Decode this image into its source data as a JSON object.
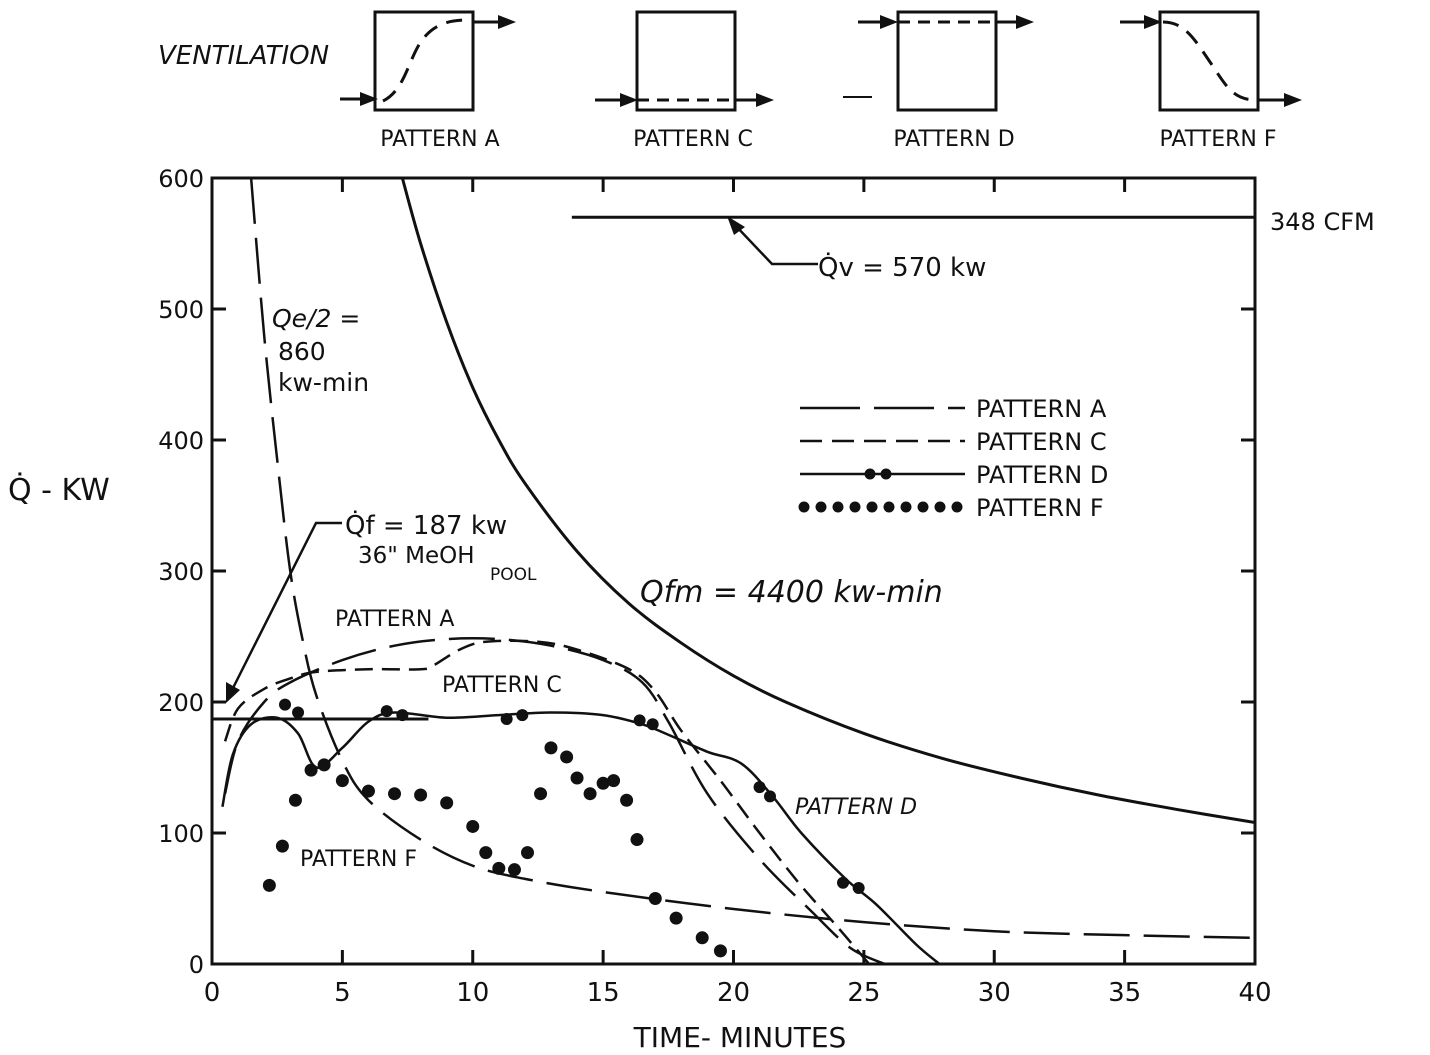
{
  "header": {
    "ventilation_label": "VENTILATION",
    "patterns": [
      {
        "label": "PATTERN A",
        "kind": "rise"
      },
      {
        "label": "PATTERN C",
        "kind": "low"
      },
      {
        "label": "PATTERN D",
        "kind": "high"
      },
      {
        "label": "PATTERN F",
        "kind": "fall"
      }
    ]
  },
  "chart_data": {
    "type": "line",
    "xlabel": "TIME- MINUTES",
    "ylabel": "Q̇ - KW",
    "xlim": [
      0,
      40
    ],
    "ylim": [
      0,
      600
    ],
    "x_ticks": [
      0,
      5,
      10,
      15,
      20,
      25,
      30,
      35,
      40
    ],
    "y_ticks": [
      0,
      100,
      200,
      300,
      400,
      500,
      600
    ],
    "x_tick_labels": [
      "0",
      "5",
      "10",
      "15",
      "20",
      "25",
      "30",
      "35",
      "40"
    ],
    "y_tick_labels": [
      "0",
      "100",
      "200",
      "300",
      "400",
      "500",
      "600"
    ],
    "grid": false,
    "legend_position": "upper-right",
    "legend": [
      {
        "label": "PATTERN A",
        "style": "long-dash"
      },
      {
        "label": "PATTERN C",
        "style": "short-dash"
      },
      {
        "label": "PATTERN D",
        "style": "solid-dots"
      },
      {
        "label": "PATTERN F",
        "style": "dots"
      }
    ],
    "series": [
      {
        "name": "PATTERN A",
        "style": "long-dash",
        "x": [
          0.5,
          1,
          2,
          3,
          5,
          7,
          9,
          11,
          13,
          15,
          16.5,
          17.5,
          19,
          21,
          23,
          24.5,
          25.8
        ],
        "y": [
          130,
          170,
          200,
          215,
          232,
          243,
          248,
          248,
          243,
          232,
          215,
          185,
          130,
          80,
          40,
          12,
          0
        ]
      },
      {
        "name": "PATTERN C",
        "style": "short-dash",
        "x": [
          0.5,
          1,
          2,
          3,
          4,
          6,
          8,
          8.5,
          9.5,
          10.5,
          12.5,
          14,
          16,
          17,
          18,
          19.5,
          21,
          22.5,
          24,
          25.2
        ],
        "y": [
          170,
          195,
          210,
          218,
          223,
          225,
          225,
          228,
          240,
          246,
          246,
          240,
          225,
          208,
          178,
          140,
          100,
          62,
          28,
          0
        ]
      },
      {
        "name": "PATTERN D",
        "style": "solid-dots",
        "x": [
          0.4,
          0.8,
          1.5,
          2.5,
          3.3,
          4,
          5,
          6,
          7,
          9,
          11,
          13,
          15,
          16.5,
          17.5,
          19,
          20.3,
          21.5,
          22.6,
          24.3,
          25.5,
          27,
          27.9
        ],
        "y": [
          120,
          160,
          183,
          188,
          176,
          150,
          165,
          185,
          192,
          188,
          190,
          192,
          190,
          183,
          175,
          162,
          153,
          128,
          100,
          65,
          45,
          15,
          0
        ]
      },
      {
        "name": "PATTERN F",
        "style": "dots",
        "x": [
          2.2,
          2.7,
          3.2,
          3.8,
          4.3,
          5,
          6,
          7,
          8,
          9,
          10,
          10.5,
          11,
          11.6,
          12.1,
          12.6,
          13,
          13.6,
          14,
          14.5,
          15,
          15.4,
          15.9,
          16.3,
          17,
          17.8,
          18.8,
          19.5
        ],
        "y": [
          60,
          90,
          125,
          148,
          152,
          140,
          132,
          130,
          129,
          123,
          105,
          85,
          73,
          72,
          85,
          130,
          165,
          158,
          142,
          130,
          138,
          140,
          125,
          95,
          50,
          35,
          20,
          10
        ]
      },
      {
        "name": "Qe/2",
        "style": "long-dash",
        "x": [
          1.5,
          2,
          2.5,
          3,
          3.5,
          4,
          5,
          6,
          8,
          10,
          12,
          15,
          20,
          25,
          30,
          35,
          40
        ],
        "y": [
          600,
          480,
          385,
          300,
          245,
          205,
          155,
          125,
          95,
          75,
          65,
          55,
          42,
          32,
          25,
          22,
          20
        ]
      },
      {
        "name": "Qfm",
        "style": "solid",
        "x": [
          7.3,
          8,
          9,
          10,
          11,
          12,
          14,
          16,
          18,
          20,
          22,
          25,
          28,
          31,
          34,
          37,
          40
        ],
        "y": [
          600,
          550,
          490,
          440,
          400,
          367,
          315,
          275,
          245,
          220,
          200,
          176,
          157,
          142,
          129,
          118,
          108
        ]
      },
      {
        "name": "Qv",
        "style": "solid",
        "x": [
          13.8,
          40
        ],
        "y": [
          570,
          570
        ]
      },
      {
        "name": "Qf",
        "style": "solid",
        "x": [
          0,
          8.3
        ],
        "y": [
          187,
          187
        ]
      }
    ],
    "annotations": {
      "qv": "Q̇v = 570 kw",
      "cfm": "348 CFM",
      "qe_line1": "Qe/2 =",
      "qe_line2": "860",
      "qe_line3": "kw-min",
      "qf_line1": "Q̇f = 187 kw",
      "qf_line2": "36\" MeOH",
      "qf_line3": "POOL",
      "qfm": "Qfm = 4400 kw-min",
      "pattern_a": "PATTERN A",
      "pattern_c": "PATTERN C",
      "pattern_d": "PATTERN D",
      "pattern_f": "PATTERN F"
    }
  }
}
